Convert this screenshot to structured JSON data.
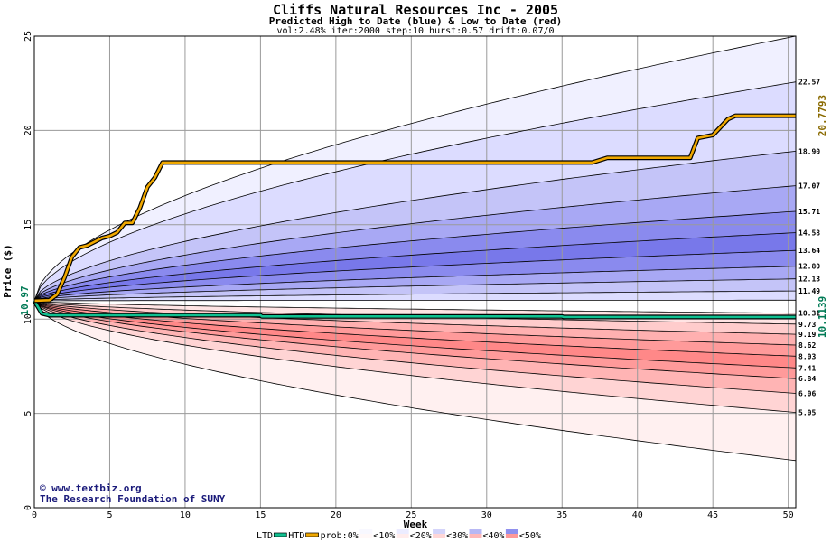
{
  "chart_data": {
    "type": "area",
    "title": "Cliffs Natural Resources Inc - 2005",
    "subtitle": "Predicted High to Date (blue) &  Low to Date (red)",
    "params": "vol:2.48% iter:2000 step:10 hurst:0.57 drift:0.07/0",
    "xlabel": "Week",
    "ylabel": "Price ($)",
    "xlim": [
      0,
      50.5
    ],
    "ylim": [
      0,
      25
    ],
    "x_ticks": [
      0,
      5,
      10,
      15,
      20,
      25,
      30,
      35,
      40,
      45,
      50
    ],
    "y_ticks": [
      0,
      5,
      10,
      15,
      20,
      25
    ],
    "grid": true,
    "start_value": 10.97,
    "start_label": "10.97",
    "colors": {
      "htd": "#f0a800",
      "ltd": "#10c090",
      "blue_label": "#8a6a00",
      "red_label": "#007a55",
      "outer_line": "#000000"
    },
    "upper_bands": [
      {
        "prob_label": "<10%",
        "color": "#f0f0ff",
        "end_label": "22.57",
        "end_value": 22.57,
        "outer_end": 25.0
      },
      {
        "prob_label": "<20%",
        "color": "#dcdcff",
        "end_label": "18.90",
        "end_value": 18.9
      },
      {
        "prob_label": "<30%",
        "color": "#c4c4f8",
        "end_label": "17.07",
        "end_value": 17.07
      },
      {
        "prob_label": "<40%",
        "color": "#a8a8f4",
        "end_label": "15.71",
        "end_value": 15.71
      },
      {
        "prob_label": "<50%",
        "color": "#8a8aee",
        "end_label": "14.58",
        "end_value": 14.58
      },
      {
        "prob_label": "<50%",
        "color": "#7878ea",
        "end_label": "13.64",
        "end_value": 13.64
      },
      {
        "prob_label": "<40%",
        "color": "#8a8aee",
        "end_label": "12.80",
        "end_value": 12.8
      },
      {
        "prob_label": "<30%",
        "color": "#a8a8f4",
        "end_label": "12.13",
        "end_value": 12.13
      },
      {
        "prob_label": "<20%",
        "color": "#c4c4f8",
        "end_label": "11.49",
        "end_value": 11.49
      },
      {
        "prob_label": "<10%",
        "color": "#dcdcff",
        "end_label": "",
        "end_value": 11.0
      }
    ],
    "lower_bands": [
      {
        "prob_label": "<10%",
        "color": "#fff2f2",
        "end_label": "10.31",
        "end_value": 10.31
      },
      {
        "prob_label": "<20%",
        "color": "#ffe4e4",
        "end_label": "9.73",
        "end_value": 9.73
      },
      {
        "prob_label": "<30%",
        "color": "#ffcccc",
        "end_label": "9.19",
        "end_value": 9.19
      },
      {
        "prob_label": "<40%",
        "color": "#ffb0b0",
        "end_label": "8.62",
        "end_value": 8.62
      },
      {
        "prob_label": "<50%",
        "color": "#ff9a9a",
        "end_label": "8.03",
        "end_value": 8.03
      },
      {
        "prob_label": "<50%",
        "color": "#ff8888",
        "end_label": "7.41",
        "end_value": 7.41
      },
      {
        "prob_label": "<40%",
        "color": "#ff9a9a",
        "end_label": "6.84",
        "end_value": 6.84
      },
      {
        "prob_label": "<30%",
        "color": "#ffb4b4",
        "end_label": "6.06",
        "end_value": 6.06
      },
      {
        "prob_label": "<20%",
        "color": "#ffd4d4",
        "end_label": "5.05",
        "end_value": 5.05
      },
      {
        "prob_label": "<10%",
        "color": "#fff0f0",
        "end_label": "",
        "end_value": 2.5
      }
    ],
    "htd_series": {
      "name": "HTD",
      "end_label": "20.7793",
      "x": [
        0,
        1,
        1.5,
        2,
        2.5,
        3,
        3.5,
        4,
        4.5,
        5,
        5.5,
        6,
        6.5,
        7,
        7.5,
        8,
        8.5,
        9,
        37,
        38,
        43.5,
        44,
        45,
        46,
        46.5,
        50.5
      ],
      "y": [
        10.97,
        11.0,
        11.3,
        12.2,
        13.3,
        13.8,
        13.9,
        14.1,
        14.3,
        14.4,
        14.6,
        15.1,
        15.1,
        15.9,
        17.0,
        17.5,
        18.3,
        18.3,
        18.3,
        18.55,
        18.55,
        19.6,
        19.75,
        20.6,
        20.78,
        20.78
      ]
    },
    "ltd_series": {
      "name": "LTD",
      "end_label": "10.1139",
      "x": [
        0,
        0.5,
        1,
        15,
        15.1,
        35,
        35.1,
        50.5
      ],
      "y": [
        10.97,
        10.3,
        10.2,
        10.2,
        10.14,
        10.14,
        10.11,
        10.11
      ]
    },
    "legend": {
      "ltd": "LTD",
      "htd": "HTD",
      "prob": "prob:0%",
      "items": [
        "<10%",
        "<20%",
        "<30%",
        "<40%",
        "<50%"
      ],
      "colors": [
        [
          "#f8f8ff",
          "#fff8f8"
        ],
        [
          "#ececff",
          "#ffecec"
        ],
        [
          "#d4d4fa",
          "#ffd6d6"
        ],
        [
          "#b8b8f4",
          "#ffb8b8"
        ],
        [
          "#9090ee",
          "#ff9898"
        ]
      ]
    }
  },
  "watermark": {
    "line1": "www.textbiz.org",
    "line2": "The Research Foundation of SUNY"
  }
}
